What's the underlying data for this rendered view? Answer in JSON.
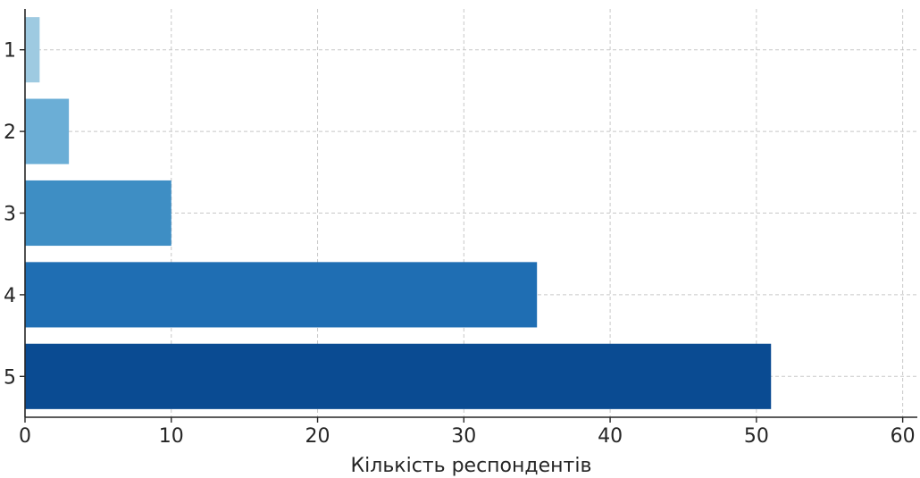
{
  "chart_data": {
    "type": "bar",
    "orientation": "horizontal",
    "categories": [
      "1",
      "2",
      "3",
      "4",
      "5"
    ],
    "values": [
      1,
      3,
      10,
      35,
      51
    ],
    "colors": [
      "#9ecae1",
      "#6baed6",
      "#3e8ec4",
      "#1f6eb3",
      "#0a4b92"
    ],
    "title": "",
    "xlabel": "Кількість респондентів",
    "ylabel": "",
    "xlim": [
      0,
      61
    ],
    "xticks": [
      0,
      10,
      20,
      30,
      40,
      50,
      60
    ],
    "grid": true,
    "category_order": "top-to-bottom"
  }
}
